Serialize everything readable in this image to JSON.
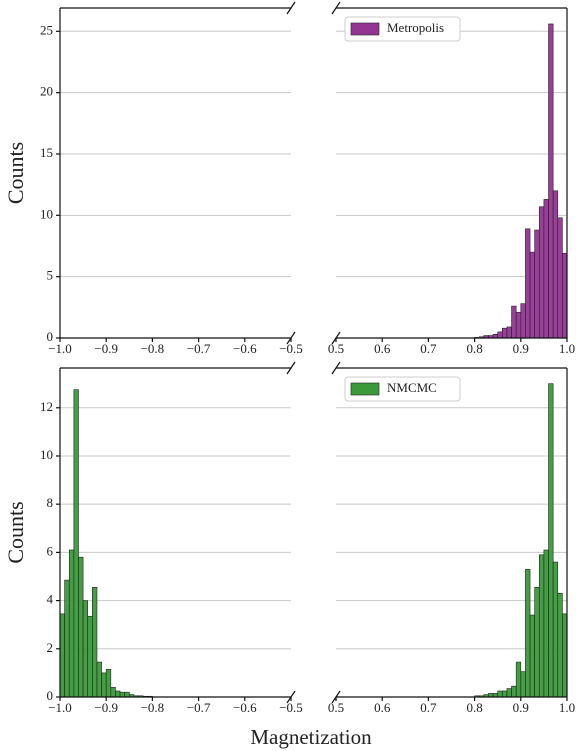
{
  "xlabel": "Magnetization",
  "chart_data": [
    {
      "type": "histogram",
      "xlim": [
        -1,
        -0.5
      ],
      "xticks": [
        {
          "value": -1,
          "label": "−1.0"
        },
        {
          "value": -0.9,
          "label": "−0.9"
        },
        {
          "value": -0.8,
          "label": "−0.8"
        },
        {
          "value": -0.7,
          "label": "−0.7"
        },
        {
          "value": -0.6,
          "label": "−0.6"
        },
        {
          "value": -0.5,
          "label": "−0.5"
        }
      ],
      "ylim": [
        0,
        26.9
      ],
      "yticks": [
        0,
        5,
        10,
        15,
        20,
        25
      ],
      "grid": true,
      "ylabel": "Counts"
    },
    {
      "type": "histogram",
      "xlim": [
        0.5,
        1
      ],
      "xticks": [
        0.5,
        0.6,
        0.7,
        0.8,
        0.9,
        {
          "value": 1,
          "label": "1.0"
        }
      ],
      "ylim": [
        0,
        26.9
      ],
      "yticks": [
        0,
        5,
        10,
        15,
        20,
        25
      ],
      "grid": true,
      "legend": "upper left",
      "series": [
        {
          "name": "Metropolis",
          "color": "#953593",
          "bins": [
            0.8,
            0.81,
            0.82,
            0.83,
            0.84,
            0.85,
            0.86,
            0.87,
            0.88,
            0.89,
            0.9,
            0.91,
            0.92,
            0.93,
            0.94,
            0.95,
            0.96,
            0.97,
            0.98,
            0.99,
            1.0
          ],
          "counts": [
            0.05,
            0.1,
            0.2,
            0.2,
            0.3,
            0.5,
            0.8,
            0.9,
            2.6,
            2.1,
            2.8,
            8.9,
            7.0,
            8.8,
            10.7,
            11.3,
            25.6,
            12.0,
            9.8,
            6.9
          ]
        }
      ]
    },
    {
      "type": "histogram",
      "xlim": [
        -1,
        -0.5
      ],
      "xticks": [
        {
          "value": -1,
          "label": "−1.0"
        },
        {
          "value": -0.9,
          "label": "−0.9"
        },
        {
          "value": -0.8,
          "label": "−0.8"
        },
        {
          "value": -0.7,
          "label": "−0.7"
        },
        {
          "value": -0.6,
          "label": "−0.6"
        },
        {
          "value": -0.5,
          "label": "−0.5"
        }
      ],
      "ylim": [
        0,
        13.65
      ],
      "yticks": [
        0,
        2,
        4,
        6,
        8,
        10,
        12
      ],
      "grid": true,
      "ylabel": "Counts",
      "series": [
        {
          "color": "#3a9a3a",
          "bins": [
            -1.0,
            -0.99,
            -0.98,
            -0.97,
            -0.96,
            -0.95,
            -0.94,
            -0.93,
            -0.92,
            -0.91,
            -0.9,
            -0.89,
            -0.88,
            -0.87,
            -0.86,
            -0.85,
            -0.84,
            -0.83,
            -0.82,
            -0.81,
            -0.8
          ],
          "counts": [
            3.45,
            4.85,
            6.1,
            12.75,
            5.8,
            4.0,
            3.35,
            4.55,
            1.45,
            1.0,
            1.15,
            0.4,
            0.25,
            0.2,
            0.2,
            0.1,
            0.05,
            0.05,
            0.03,
            0.03
          ]
        }
      ]
    },
    {
      "type": "histogram",
      "xlim": [
        0.5,
        1
      ],
      "xticks": [
        0.5,
        0.6,
        0.7,
        0.8,
        0.9,
        {
          "value": 1,
          "label": "1.0"
        }
      ],
      "ylim": [
        0,
        13.65
      ],
      "yticks": [
        0,
        2,
        4,
        6,
        8,
        10,
        12
      ],
      "grid": true,
      "legend": "upper left",
      "series": [
        {
          "name": "NMCMC",
          "color": "#3a9a3a",
          "bins": [
            0.8,
            0.81,
            0.82,
            0.83,
            0.84,
            0.85,
            0.86,
            0.87,
            0.88,
            0.89,
            0.9,
            0.91,
            0.92,
            0.93,
            0.94,
            0.95,
            0.96,
            0.97,
            0.98,
            0.99,
            1.0
          ],
          "counts": [
            0.05,
            0.05,
            0.1,
            0.15,
            0.15,
            0.25,
            0.25,
            0.35,
            0.45,
            1.45,
            1.05,
            5.3,
            3.4,
            4.55,
            5.9,
            6.1,
            13.0,
            5.6,
            4.3,
            3.45
          ]
        }
      ]
    }
  ]
}
